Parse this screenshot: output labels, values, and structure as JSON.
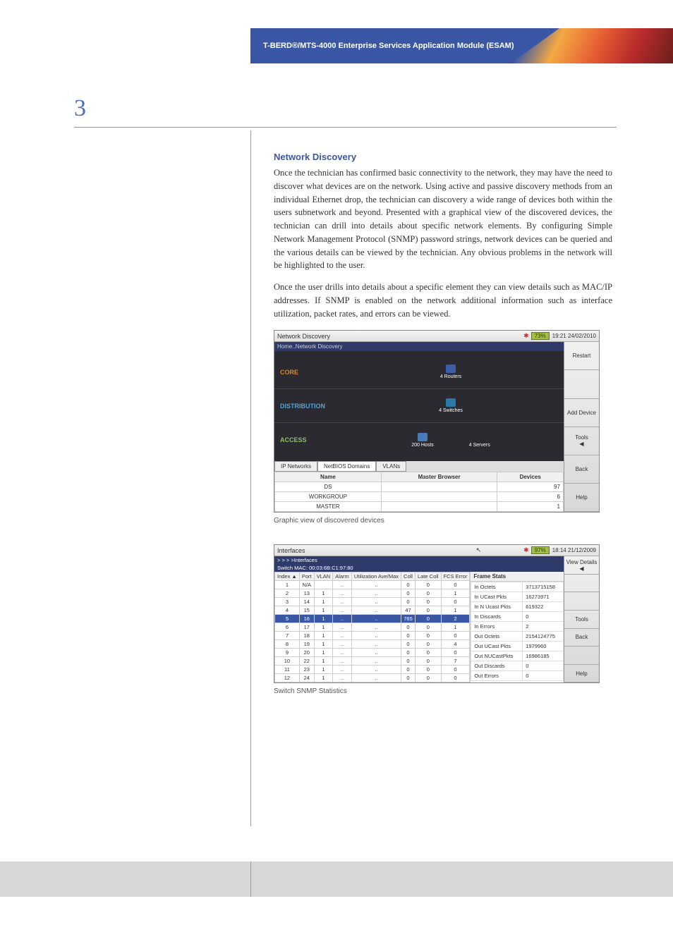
{
  "header": {
    "title": "T-BERD®/MTS-4000  Enterprise Services Application Module (ESAM)"
  },
  "page_number": "3",
  "section_title": "Network Discovery",
  "paragraph1": "Once the technician has confirmed basic connectivity to the network, they may have the need to discover what devices are on the network. Using active and passive discovery methods from an individual Ethernet drop, the technician can discovery a wide range of devices both within the users subnetwork and beyond. Presented with a graphical view of the discovered devices, the technician can drill into details about specific network elements. By configuring Simple Network Management Protocol (SNMP) password strings, network devices can be queried and the various details can be viewed by the technician. Any obvious problems in the network will be highlighted to the user.",
  "paragraph2": "Once the user drills into details about a specific element they can view details such as MAC/IP addresses. If SNMP is enabled on the network additional information such as interface utilization, packet rates, and errors can be viewed.",
  "caption1": "Graphic view of discovered devices",
  "caption2": "Switch SNMP Statistics",
  "nd": {
    "title": "Network Discovery",
    "battery": "73%",
    "datetime": "19:21 24/02/2010",
    "breadcrumb": "Home..Network Discovery",
    "row_labels": {
      "core": "CORE",
      "distribution": "DISTRIBUTION",
      "access": "ACCESS"
    },
    "row_colors": {
      "core": "#d68a2a",
      "distribution": "#5aa0d0",
      "access": "#8ac060"
    },
    "nodes": {
      "routers": "4 Routers",
      "switches": "4 Switches",
      "hosts": "200 Hosts",
      "servers": "4 Servers"
    },
    "tabs": [
      "IP Networks",
      "NetBIOS Domains",
      "VLANs"
    ],
    "table": {
      "headers": [
        "Name",
        "Master Browser",
        "Devices"
      ],
      "rows": [
        [
          "DS",
          "",
          "97"
        ],
        [
          "WORKGROUP",
          "",
          "6"
        ],
        [
          "MASTER",
          "",
          "1"
        ]
      ]
    },
    "side_buttons": [
      "Restart",
      "",
      "Add Device",
      "Tools\n◀",
      "Back",
      "Help"
    ]
  },
  "if": {
    "title": "Interfaces",
    "battery": "97%",
    "datetime": "18:14 21/12/2009",
    "breadcrumb": "> > > >Interfaces",
    "mac": "Switch MAC: 00:03:6B:C1:97:80",
    "left_headers": [
      "Index ▲",
      "Port",
      "VLAN",
      "Alarm",
      "Utilization Ave/Max",
      "Coll",
      "Late Coll",
      "FCS Error"
    ],
    "left_rows": [
      [
        "1",
        "N/A",
        "",
        "..",
        "..",
        "0",
        "0",
        "0"
      ],
      [
        "2",
        "13",
        "1",
        "..",
        "..",
        "0",
        "0",
        "1"
      ],
      [
        "3",
        "14",
        "1",
        "..",
        "..",
        "0",
        "0",
        "0"
      ],
      [
        "4",
        "15",
        "1",
        "..",
        "..",
        "47",
        "0",
        "1"
      ],
      [
        "5",
        "16",
        "1",
        "..",
        "..",
        "765",
        "0",
        "2"
      ],
      [
        "6",
        "17",
        "1",
        "..",
        "..",
        "0",
        "0",
        "1"
      ],
      [
        "7",
        "18",
        "1",
        "..",
        "..",
        "0",
        "0",
        "0"
      ],
      [
        "8",
        "19",
        "1",
        "..",
        "..",
        "0",
        "0",
        "4"
      ],
      [
        "9",
        "20",
        "1",
        "..",
        "..",
        "0",
        "0",
        "0"
      ],
      [
        "10",
        "22",
        "1",
        "..",
        "..",
        "0",
        "0",
        "7"
      ],
      [
        "11",
        "23",
        "1",
        "..",
        "..",
        "0",
        "0",
        "0"
      ],
      [
        "12",
        "24",
        "1",
        "..",
        "..",
        "0",
        "0",
        "0"
      ]
    ],
    "selected_row_index": 4,
    "frame_stats_header": "Frame Stats",
    "frame_stats": [
      [
        "In Octets",
        "3713715158"
      ],
      [
        "In UCast Pkts",
        "16273971"
      ],
      [
        "In N Ucast Pkts",
        "619322"
      ],
      [
        "In Discards",
        "0"
      ],
      [
        "In Errors",
        "2"
      ],
      [
        "Out Octets",
        "2154124775"
      ],
      [
        "Out UCast Pkts",
        "1979960"
      ],
      [
        "Out NUCastPkts",
        "16986185"
      ],
      [
        "Out Discards",
        "0"
      ],
      [
        "Out Errors",
        "0"
      ]
    ],
    "side_buttons": [
      "View Details\n◀",
      "",
      "",
      "Tools",
      "Back",
      "",
      "Help"
    ]
  }
}
